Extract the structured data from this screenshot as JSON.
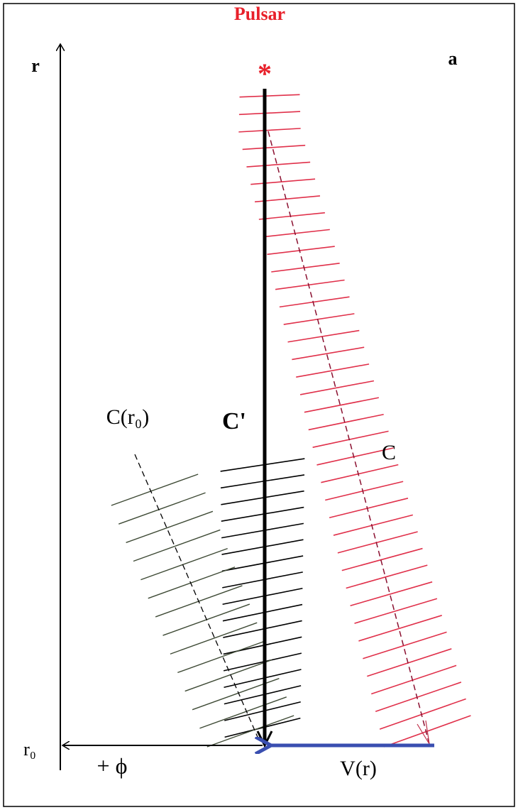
{
  "title": "Pulsar",
  "star": "*",
  "panel": "a",
  "labels": {
    "r": "r",
    "c_r0": "C(r₀)",
    "c_prime": "C'",
    "c": "C",
    "r0": "r₀",
    "phi": "+ ϕ",
    "v_r": "V(r)"
  }
}
